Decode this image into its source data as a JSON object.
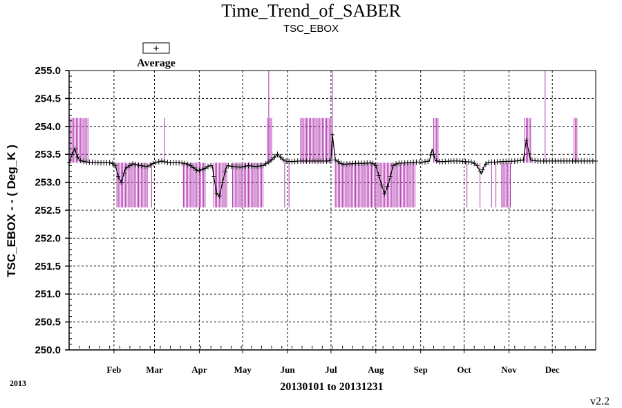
{
  "chart_data": {
    "type": "line",
    "title": "Time_Trend_of_SABER",
    "subtitle": "TSC_EBOX",
    "ylabel": "TSC_EBOX  - - ( Deg_K )",
    "xlabel": "20130101 to 20131231",
    "year_label": "2013",
    "version_label": "v2.2",
    "legend": {
      "symbol": "+",
      "label": "Average",
      "position": "top-left"
    },
    "ylim": [
      250.0,
      255.0
    ],
    "yticks": [
      "250.0",
      "250.5",
      "251.0",
      "251.5",
      "252.0",
      "252.5",
      "253.0",
      "253.5",
      "254.0",
      "254.5",
      "255.0"
    ],
    "xlim": [
      1,
      365
    ],
    "months": [
      {
        "label": "Feb",
        "day": 32
      },
      {
        "label": "Mar",
        "day": 60
      },
      {
        "label": "Apr",
        "day": 91
      },
      {
        "label": "May",
        "day": 121
      },
      {
        "label": "Jun",
        "day": 152
      },
      {
        "label": "Jul",
        "day": 182
      },
      {
        "label": "Aug",
        "day": 213
      },
      {
        "label": "Sep",
        "day": 244
      },
      {
        "label": "Oct",
        "day": 274
      },
      {
        "label": "Nov",
        "day": 305
      },
      {
        "label": "Dec",
        "day": 335
      }
    ],
    "grid": true,
    "colors": {
      "average": "#000000",
      "range": "#b030b0",
      "grid": "#000000"
    },
    "series": [
      {
        "name": "Average",
        "x": [
          1,
          3,
          5,
          6,
          8,
          10,
          14,
          20,
          30,
          33,
          35,
          37,
          40,
          45,
          50,
          55,
          60,
          65,
          70,
          75,
          78,
          82,
          85,
          90,
          95,
          98,
          100,
          101,
          103,
          105,
          107,
          110,
          115,
          120,
          125,
          130,
          135,
          140,
          145,
          150,
          155,
          160,
          165,
          170,
          175,
          180,
          182,
          183,
          185,
          190,
          195,
          200,
          205,
          210,
          213,
          217,
          219,
          220,
          222,
          225,
          228,
          235,
          240,
          245,
          250,
          252,
          254,
          256,
          260,
          265,
          270,
          275,
          280,
          283,
          286,
          288,
          290,
          292,
          295,
          300,
          310,
          315,
          317,
          320,
          325,
          330,
          340,
          350,
          360,
          365
        ],
        "values": [
          253.35,
          253.5,
          253.6,
          253.5,
          253.4,
          253.38,
          253.36,
          253.35,
          253.35,
          253.3,
          253.1,
          253.0,
          253.25,
          253.33,
          253.3,
          253.28,
          253.35,
          253.38,
          253.35,
          253.35,
          253.35,
          253.33,
          253.3,
          253.2,
          253.25,
          253.3,
          253.3,
          253.1,
          252.8,
          252.75,
          253.0,
          253.3,
          253.28,
          253.27,
          253.3,
          253.28,
          253.3,
          253.38,
          253.5,
          253.38,
          253.37,
          253.38,
          253.38,
          253.38,
          253.38,
          253.38,
          253.4,
          253.85,
          253.4,
          253.32,
          253.33,
          253.34,
          253.34,
          253.35,
          253.3,
          252.95,
          252.8,
          252.85,
          253.0,
          253.3,
          253.34,
          253.35,
          253.36,
          253.36,
          253.38,
          253.6,
          253.4,
          253.37,
          253.37,
          253.38,
          253.38,
          253.37,
          253.36,
          253.3,
          253.15,
          253.3,
          253.35,
          253.36,
          253.36,
          253.37,
          253.38,
          253.4,
          253.75,
          253.4,
          253.38,
          253.38,
          253.38,
          253.38,
          253.38,
          253.38
        ]
      },
      {
        "name": "Range",
        "spikes": [
          {
            "from": 2,
            "to": 14,
            "min": 253.35,
            "max": 254.15
          },
          {
            "from": 34,
            "to": 55,
            "min": 252.55,
            "max": 253.35
          },
          {
            "from": 58,
            "to": 58,
            "min": 252.55,
            "max": 253.35
          },
          {
            "from": 67,
            "to": 67,
            "min": 253.35,
            "max": 254.15
          },
          {
            "from": 80,
            "to": 95,
            "min": 252.55,
            "max": 253.35
          },
          {
            "from": 101,
            "to": 110,
            "min": 252.55,
            "max": 253.35
          },
          {
            "from": 114,
            "to": 135,
            "min": 252.55,
            "max": 253.35
          },
          {
            "from": 138,
            "to": 141,
            "min": 253.35,
            "max": 254.15
          },
          {
            "from": 139,
            "to": 139,
            "min": 253.35,
            "max": 255.0
          },
          {
            "from": 150,
            "to": 150,
            "min": 252.55,
            "max": 253.35
          },
          {
            "from": 153,
            "to": 153,
            "min": 252.55,
            "max": 253.35
          },
          {
            "from": 161,
            "to": 182,
            "min": 253.35,
            "max": 254.15
          },
          {
            "from": 183,
            "to": 183,
            "min": 253.35,
            "max": 255.0
          },
          {
            "from": 185,
            "to": 240,
            "min": 252.55,
            "max": 253.35
          },
          {
            "from": 253,
            "to": 256,
            "min": 253.35,
            "max": 254.15
          },
          {
            "from": 276,
            "to": 276,
            "min": 252.55,
            "max": 253.35
          },
          {
            "from": 285,
            "to": 285,
            "min": 252.55,
            "max": 253.35
          },
          {
            "from": 293,
            "to": 293,
            "min": 252.55,
            "max": 253.35
          },
          {
            "from": 296,
            "to": 296,
            "min": 252.55,
            "max": 253.35
          },
          {
            "from": 300,
            "to": 306,
            "min": 252.55,
            "max": 253.35
          },
          {
            "from": 316,
            "to": 320,
            "min": 253.35,
            "max": 254.15
          },
          {
            "from": 330,
            "to": 330,
            "min": 253.35,
            "max": 255.0
          },
          {
            "from": 350,
            "to": 352,
            "min": 253.35,
            "max": 254.15
          }
        ]
      }
    ]
  }
}
